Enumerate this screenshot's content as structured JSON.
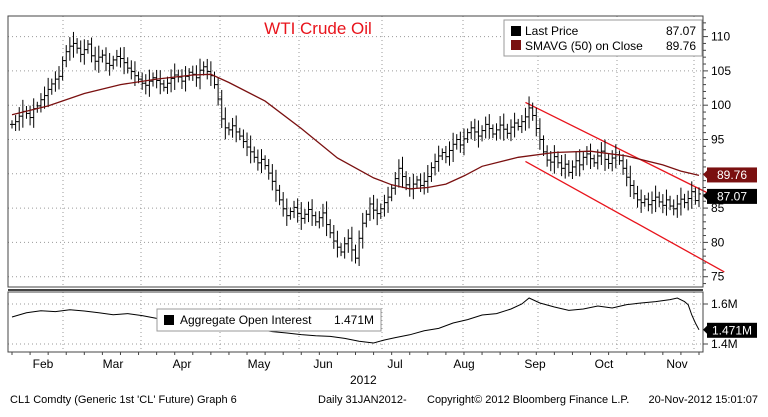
{
  "chart_data": [
    {
      "type": "ohlc",
      "title": "WTI Crude Oil",
      "title_color": "#e8141c",
      "ylim": [
        73.5,
        113
      ],
      "y_ticks": [
        75,
        80,
        85,
        90,
        95,
        100,
        105,
        110
      ],
      "y_ticks_label": [
        "75",
        "80",
        "85",
        "90",
        "95",
        "100",
        "105",
        "110"
      ],
      "x_month_labels": [
        "Feb",
        "Mar",
        "Apr",
        "May",
        "Jun",
        "Jul",
        "Aug",
        "Sep",
        "Oct",
        "Nov"
      ],
      "x_year_label": "2012",
      "legend": [
        {
          "label": "Last Price",
          "value": "87.07",
          "color": "#000000"
        },
        {
          "label": "SMAVG (50) on Close",
          "value": "89.76",
          "color": "#7a1010"
        }
      ],
      "last_labels": [
        {
          "value": "89.76",
          "y": 89.76,
          "color": "#7a1010"
        },
        {
          "value": "87.07",
          "y": 87.07,
          "color": "#000000"
        }
      ],
      "colors": {
        "price": "#000000",
        "sma": "#7a1010",
        "channel": "#e8141c",
        "grid": "#9a9a9a"
      },
      "price_closes": [
        [
          0,
          97.2
        ],
        [
          1,
          97.6
        ],
        [
          2,
          98.4
        ],
        [
          3,
          99.1
        ],
        [
          4,
          98.8
        ],
        [
          5,
          98.2
        ],
        [
          6,
          99.5
        ],
        [
          7,
          99.9
        ],
        [
          8,
          100.8
        ],
        [
          9,
          101.4
        ],
        [
          10,
          102.3
        ],
        [
          11,
          103.1
        ],
        [
          12,
          103.8
        ],
        [
          13,
          104.2
        ],
        [
          14,
          106.5
        ],
        [
          15,
          107.8
        ],
        [
          16,
          108.6
        ],
        [
          17,
          109.0
        ],
        [
          18,
          108.3
        ],
        [
          19,
          107.4
        ],
        [
          20,
          108.1
        ],
        [
          21,
          108.9
        ],
        [
          22,
          107.2
        ],
        [
          23,
          106.4
        ],
        [
          24,
          107.0
        ],
        [
          25,
          107.3
        ],
        [
          26,
          106.1
        ],
        [
          27,
          105.8
        ],
        [
          28,
          106.6
        ],
        [
          29,
          107.1
        ],
        [
          30,
          106.8
        ],
        [
          31,
          106.2
        ],
        [
          32,
          105.4
        ],
        [
          33,
          104.9
        ],
        [
          34,
          104.3
        ],
        [
          35,
          103.8
        ],
        [
          36,
          103.2
        ],
        [
          37,
          102.9
        ],
        [
          38,
          103.5
        ],
        [
          39,
          104.0
        ],
        [
          40,
          103.6
        ],
        [
          41,
          103.1
        ],
        [
          42,
          102.6
        ],
        [
          43,
          103.2
        ],
        [
          44,
          103.9
        ],
        [
          45,
          104.4
        ],
        [
          46,
          104.1
        ],
        [
          47,
          103.5
        ],
        [
          48,
          104.2
        ],
        [
          49,
          104.8
        ],
        [
          50,
          104.5
        ],
        [
          51,
          104.0
        ],
        [
          52,
          105.1
        ],
        [
          53,
          105.6
        ],
        [
          54,
          104.9
        ],
        [
          55,
          104.3
        ],
        [
          56,
          103.0
        ],
        [
          57,
          100.9
        ],
        [
          58,
          98.0
        ],
        [
          59,
          96.7
        ],
        [
          60,
          96.4
        ],
        [
          61,
          97.0
        ],
        [
          62,
          96.1
        ],
        [
          63,
          95.5
        ],
        [
          64,
          94.7
        ],
        [
          65,
          93.9
        ],
        [
          66,
          93.2
        ],
        [
          67,
          92.4
        ],
        [
          68,
          91.6
        ],
        [
          69,
          92.1
        ],
        [
          70,
          91.2
        ],
        [
          71,
          90.1
        ],
        [
          72,
          88.9
        ],
        [
          73,
          87.6
        ],
        [
          74,
          86.2
        ],
        [
          75,
          84.9
        ],
        [
          76,
          83.9
        ],
        [
          77,
          84.5
        ],
        [
          78,
          85.1
        ],
        [
          79,
          84.2
        ],
        [
          80,
          83.5
        ],
        [
          81,
          84.1
        ],
        [
          82,
          84.8
        ],
        [
          83,
          83.9
        ],
        [
          84,
          83.0
        ],
        [
          85,
          83.6
        ],
        [
          86,
          84.3
        ],
        [
          87,
          82.6
        ],
        [
          88,
          81.4
        ],
        [
          89,
          80.2
        ],
        [
          90,
          79.3
        ],
        [
          91,
          78.6
        ],
        [
          92,
          79.8
        ],
        [
          93,
          80.6
        ],
        [
          94,
          78.9
        ],
        [
          95,
          77.7
        ],
        [
          96,
          80.6
        ],
        [
          97,
          82.8
        ],
        [
          98,
          84.1
        ],
        [
          99,
          85.6
        ],
        [
          100,
          84.7
        ],
        [
          101,
          84.2
        ],
        [
          102,
          84.9
        ],
        [
          103,
          85.8
        ],
        [
          104,
          86.6
        ],
        [
          105,
          87.9
        ],
        [
          106,
          89.3
        ],
        [
          107,
          90.8
        ],
        [
          108,
          89.6
        ],
        [
          109,
          88.4
        ],
        [
          110,
          87.8
        ],
        [
          111,
          88.5
        ],
        [
          112,
          89.1
        ],
        [
          113,
          88.3
        ],
        [
          114,
          88.9
        ],
        [
          115,
          89.6
        ],
        [
          116,
          90.9
        ],
        [
          117,
          91.8
        ],
        [
          118,
          92.6
        ],
        [
          119,
          93.1
        ],
        [
          120,
          92.5
        ],
        [
          121,
          93.4
        ],
        [
          122,
          94.3
        ],
        [
          123,
          95.0
        ],
        [
          124,
          94.2
        ],
        [
          125,
          95.1
        ],
        [
          126,
          96.0
        ],
        [
          127,
          96.7
        ],
        [
          128,
          96.1
        ],
        [
          129,
          95.5
        ],
        [
          130,
          96.3
        ],
        [
          131,
          97.2
        ],
        [
          132,
          96.6
        ],
        [
          133,
          95.8
        ],
        [
          134,
          96.4
        ],
        [
          135,
          97.1
        ],
        [
          136,
          96.5
        ],
        [
          137,
          95.9
        ],
        [
          138,
          96.8
        ],
        [
          139,
          97.4
        ],
        [
          140,
          96.9
        ],
        [
          141,
          97.6
        ],
        [
          142,
          98.3
        ],
        [
          143,
          99.6
        ],
        [
          144,
          98.5
        ],
        [
          145,
          96.6
        ],
        [
          146,
          95.0
        ],
        [
          147,
          93.2
        ],
        [
          148,
          92.0
        ],
        [
          149,
          91.7
        ],
        [
          150,
          92.5
        ],
        [
          151,
          91.6
        ],
        [
          152,
          90.8
        ],
        [
          153,
          91.4
        ],
        [
          154,
          90.2
        ],
        [
          155,
          91.0
        ],
        [
          156,
          91.9
        ],
        [
          157,
          91.3
        ],
        [
          158,
          92.4
        ],
        [
          159,
          92.9
        ],
        [
          160,
          92.2
        ],
        [
          161,
          91.6
        ],
        [
          162,
          92.6
        ],
        [
          163,
          93.3
        ],
        [
          164,
          92.1
        ],
        [
          165,
          91.5
        ],
        [
          166,
          92.3
        ],
        [
          167,
          92.8
        ],
        [
          168,
          91.9
        ],
        [
          169,
          90.8
        ],
        [
          170,
          89.5
        ],
        [
          171,
          88.3
        ],
        [
          172,
          87.1
        ],
        [
          173,
          86.2
        ],
        [
          174,
          85.8
        ],
        [
          175,
          86.3
        ],
        [
          176,
          85.5
        ],
        [
          177,
          86.1
        ],
        [
          178,
          86.6
        ],
        [
          179,
          85.9
        ],
        [
          180,
          85.4
        ],
        [
          181,
          86.2
        ],
        [
          182,
          85.3
        ],
        [
          183,
          84.9
        ],
        [
          184,
          85.6
        ],
        [
          185,
          86.3
        ],
        [
          186,
          85.8
        ],
        [
          187,
          86.4
        ],
        [
          188,
          87.4
        ],
        [
          189,
          86.1
        ],
        [
          190,
          87.07
        ]
      ],
      "sma50": [
        [
          0,
          98.6
        ],
        [
          10,
          99.9
        ],
        [
          20,
          101.7
        ],
        [
          30,
          103.0
        ],
        [
          40,
          103.8
        ],
        [
          50,
          104.4
        ],
        [
          55,
          104.5
        ],
        [
          60,
          103.3
        ],
        [
          70,
          100.6
        ],
        [
          80,
          96.6
        ],
        [
          90,
          92.3
        ],
        [
          100,
          89.4
        ],
        [
          105,
          88.4
        ],
        [
          110,
          87.8
        ],
        [
          115,
          88.0
        ],
        [
          120,
          88.5
        ],
        [
          125,
          89.7
        ],
        [
          130,
          91.1
        ],
        [
          140,
          92.4
        ],
        [
          150,
          93.1
        ],
        [
          160,
          93.3
        ],
        [
          170,
          92.6
        ],
        [
          180,
          91.3
        ],
        [
          185,
          90.4
        ],
        [
          190,
          89.76
        ]
      ],
      "channel": [
        {
          "x0": 142,
          "y0": 100.4,
          "x1": 197,
          "y1": 86.0
        },
        {
          "x0": 142,
          "y0": 91.8,
          "x1": 197,
          "y1": 75.7
        }
      ]
    },
    {
      "type": "line",
      "ylim": [
        1.36,
        1.66
      ],
      "y_ticks": [
        1.4,
        1.6
      ],
      "y_ticks_label": [
        "1.4M",
        "1.6M"
      ],
      "legend": [
        {
          "label": "Aggregate Open Interest",
          "value": "1.471M",
          "color": "#000000"
        }
      ],
      "last_label": {
        "value": "1.471M",
        "y": 1.471
      },
      "values": [
        [
          0,
          1.535
        ],
        [
          4,
          1.556
        ],
        [
          8,
          1.566
        ],
        [
          12,
          1.562
        ],
        [
          16,
          1.571
        ],
        [
          20,
          1.565
        ],
        [
          24,
          1.556
        ],
        [
          28,
          1.546
        ],
        [
          32,
          1.552
        ],
        [
          36,
          1.542
        ],
        [
          40,
          1.528
        ],
        [
          44,
          1.522
        ],
        [
          48,
          1.527
        ],
        [
          52,
          1.518
        ],
        [
          56,
          1.509
        ],
        [
          60,
          1.501
        ],
        [
          64,
          1.486
        ],
        [
          68,
          1.474
        ],
        [
          72,
          1.462
        ],
        [
          76,
          1.455
        ],
        [
          80,
          1.447
        ],
        [
          84,
          1.441
        ],
        [
          88,
          1.438
        ],
        [
          92,
          1.428
        ],
        [
          96,
          1.414
        ],
        [
          100,
          1.405
        ],
        [
          103,
          1.42
        ],
        [
          106,
          1.432
        ],
        [
          110,
          1.446
        ],
        [
          114,
          1.466
        ],
        [
          118,
          1.478
        ],
        [
          122,
          1.505
        ],
        [
          126,
          1.522
        ],
        [
          130,
          1.545
        ],
        [
          134,
          1.552
        ],
        [
          138,
          1.575
        ],
        [
          141,
          1.6
        ],
        [
          143,
          1.63
        ],
        [
          146,
          1.605
        ],
        [
          150,
          1.585
        ],
        [
          154,
          1.568
        ],
        [
          158,
          1.575
        ],
        [
          162,
          1.59
        ],
        [
          166,
          1.58
        ],
        [
          170,
          1.597
        ],
        [
          174,
          1.605
        ],
        [
          178,
          1.612
        ],
        [
          182,
          1.622
        ],
        [
          184,
          1.63
        ],
        [
          186,
          1.612
        ],
        [
          187,
          1.596
        ],
        [
          188,
          1.545
        ],
        [
          189,
          1.505
        ],
        [
          190,
          1.471
        ]
      ]
    }
  ],
  "footer": {
    "left": "CL1 Comdty (Generic 1st 'CL' Future) Graph 6",
    "middle": "Daily 31JAN2012-",
    "right": "Copyright© 2012 Bloomberg Finance L.P.",
    "timestamp": "20-Nov-2012 15:01:07"
  }
}
